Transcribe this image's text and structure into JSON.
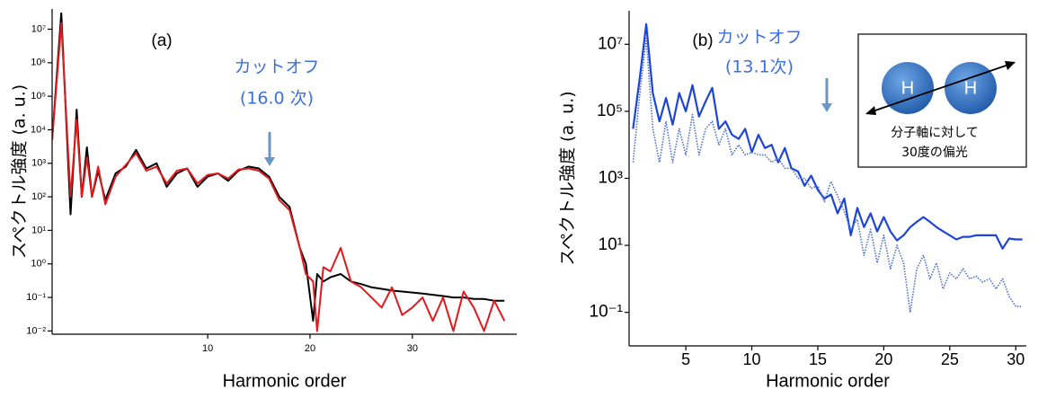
{
  "chart_data": [
    {
      "type": "line",
      "panel_label": "(a)",
      "annotation": [
        "カットオフ",
        "(16.0 次)"
      ],
      "xlabel": "Harmonic order",
      "ylabel": "スペクトル強度 (a. u.)",
      "log_y": true,
      "xlim": [
        -5.2,
        40.2
      ],
      "ylim": [
        0.008,
        40000000
      ],
      "xticks": [
        10,
        20,
        30
      ],
      "yticks": [
        {
          "value": 0.01,
          "label": "10⁻²"
        },
        {
          "value": 0.1,
          "label": "10⁻¹"
        },
        {
          "value": 1,
          "label": "10⁰"
        },
        {
          "value": 10,
          "label": "10¹"
        },
        {
          "value": 100,
          "label": "10²"
        },
        {
          "value": 1000,
          "label": "10³"
        },
        {
          "value": 10000,
          "label": "10⁴"
        },
        {
          "value": 100000,
          "label": "10⁵"
        },
        {
          "value": 1000000,
          "label": "10⁶"
        },
        {
          "value": 10000000,
          "label": "10⁷"
        }
      ],
      "x": [
        -5.2,
        -4.3,
        -3.4,
        -2.8,
        -2.3,
        -1.8,
        -1.3,
        -0.7,
        0,
        1,
        2,
        3,
        4,
        5,
        6,
        7,
        8,
        9,
        10,
        11,
        12,
        13,
        14,
        15,
        16,
        17,
        18,
        19,
        19.6,
        20.3,
        20.7,
        21.3,
        22,
        23,
        24,
        25,
        26,
        27,
        28,
        29,
        30,
        31,
        32,
        33,
        34,
        35,
        36,
        37,
        38,
        39
      ],
      "series": [
        {
          "color": "#000000",
          "dash": "solid",
          "values": [
            5000,
            30000000,
            30,
            40000,
            100,
            3000,
            100,
            600,
            80,
            500,
            800,
            2500,
            700,
            1000,
            200,
            500,
            700,
            200,
            400,
            500,
            300,
            600,
            800,
            700,
            400,
            100,
            50,
            3,
            1,
            0.02,
            0.5,
            0.3,
            0.4,
            0.5,
            0.3,
            0.25,
            0.2,
            0.18,
            0.16,
            0.15,
            0.14,
            0.13,
            0.12,
            0.11,
            0.1,
            0.1,
            0.09,
            0.09,
            0.08,
            0.08
          ]
        },
        {
          "color": "#e3171c",
          "dash": "solid",
          "values": [
            5000,
            15000000,
            100,
            20000,
            100,
            1500,
            100,
            800,
            60,
            400,
            900,
            2000,
            600,
            800,
            250,
            600,
            700,
            250,
            450,
            500,
            350,
            650,
            700,
            600,
            350,
            80,
            40,
            3,
            0.5,
            0.3,
            0.01,
            0.8,
            0.6,
            3,
            0.3,
            0.2,
            0.1,
            0.05,
            0.2,
            0.03,
            0.05,
            0.1,
            0.02,
            0.1,
            0.01,
            0.15,
            0.05,
            0.01,
            0.08,
            0.02
          ]
        }
      ]
    },
    {
      "type": "line",
      "panel_label": "(b)",
      "annotation": [
        "カットオフ",
        "(13.1次)"
      ],
      "xlabel": "Harmonic order",
      "ylabel": "スペクトル強度 (a. u.)",
      "log_y": true,
      "inset": {
        "atoms": [
          "H",
          "H"
        ],
        "caption": [
          "分子軸に対して",
          "30度の偏光"
        ]
      },
      "xlim": [
        0.7,
        30.8
      ],
      "ylim": [
        0.01,
        100000000
      ],
      "xticks": [
        5,
        10,
        15,
        20,
        25,
        30
      ],
      "yticks": [
        {
          "value": 0.1,
          "label": "10⁻¹"
        },
        {
          "value": 10,
          "label": "10¹"
        },
        {
          "value": 1000,
          "label": "10³"
        },
        {
          "value": 100000,
          "label": "10⁵"
        },
        {
          "value": 10000000,
          "label": "10⁷"
        }
      ],
      "x": [
        1,
        1.5,
        2,
        2.5,
        3,
        3.5,
        4,
        4.5,
        5,
        5.5,
        6,
        6.5,
        7,
        7.5,
        8,
        8.5,
        9,
        9.5,
        10,
        10.5,
        11,
        11.5,
        12,
        12.5,
        13,
        13.5,
        14,
        14.5,
        15,
        15.5,
        16,
        16.5,
        17,
        17.5,
        18,
        18.5,
        19,
        19.5,
        20,
        20.5,
        21,
        21.5,
        22,
        22.5,
        23,
        23.5,
        24,
        24.5,
        25,
        25.5,
        26,
        26.5,
        27,
        27.5,
        28,
        28.5,
        29,
        29.5,
        30,
        30.5
      ],
      "series": [
        {
          "color": "#1c45d8",
          "dash": "solid",
          "values": [
            30000,
            900000,
            40000000,
            350000,
            50000,
            250000,
            40000,
            350000,
            100000,
            600000,
            70000,
            200000,
            500000,
            30000,
            50000,
            20000,
            15000,
            30000,
            6000,
            20000,
            8000,
            10000,
            3000,
            8000,
            2000,
            1600,
            600,
            1200,
            450,
            250,
            330,
            90,
            250,
            20,
            130,
            35,
            90,
            26,
            70,
            26,
            14,
            20,
            35,
            50,
            70,
            50,
            35,
            26,
            20,
            15,
            18,
            18,
            20,
            20,
            20,
            20,
            8,
            16,
            15,
            15
          ]
        },
        {
          "color": "#4a6fd0",
          "dash": "dotted",
          "values": [
            3000,
            300000,
            15000000,
            30000,
            3000,
            50000,
            3000,
            30000,
            5000,
            80000,
            5000,
            30000,
            50000,
            10000,
            30000,
            5000,
            10000,
            5000,
            6000,
            5000,
            5000,
            3000,
            4000,
            2000,
            2000,
            1000,
            1000,
            500,
            600,
            200,
            800,
            300,
            100,
            30,
            60,
            5,
            30,
            3,
            20,
            2,
            10,
            3,
            0.1,
            2,
            5,
            1,
            3,
            0.5,
            1.5,
            1,
            2,
            1,
            1.2,
            0.8,
            1,
            0.5,
            1,
            0.3,
            0.15,
            0.15
          ]
        }
      ]
    }
  ]
}
